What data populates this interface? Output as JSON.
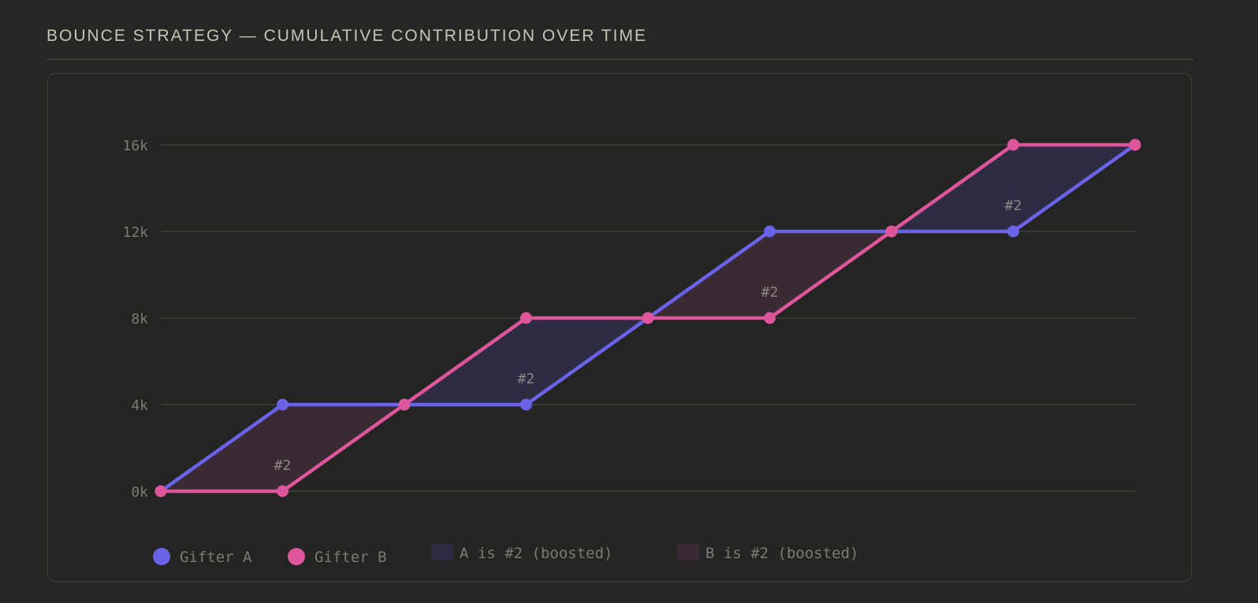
{
  "title": "BOUNCE STRATEGY — CUMULATIVE CONTRIBUTION OVER TIME",
  "colors": {
    "gifter_a": "#6a63e8",
    "gifter_b": "#dd559a",
    "a_boost_fill": "#2e2c44",
    "b_boost_fill": "#3a2a33",
    "grid": "#373734",
    "axis_text": "#7c7a74",
    "band_label": "#8a8882"
  },
  "chart_data": {
    "type": "line",
    "x": [
      0,
      1,
      2,
      3,
      4,
      5,
      6,
      7,
      8
    ],
    "ylim": [
      0,
      16000
    ],
    "yticks": [
      {
        "value": 0,
        "label": "0k"
      },
      {
        "value": 4000,
        "label": "4k"
      },
      {
        "value": 8000,
        "label": "8k"
      },
      {
        "value": 12000,
        "label": "12k"
      },
      {
        "value": 16000,
        "label": "16k"
      }
    ],
    "grid": true,
    "legend_position": "bottom-left",
    "series": [
      {
        "name": "Gifter A",
        "values": [
          0,
          4000,
          4000,
          4000,
          8000,
          12000,
          12000,
          12000,
          16000
        ]
      },
      {
        "name": "Gifter B",
        "values": [
          0,
          0,
          4000,
          8000,
          8000,
          8000,
          12000,
          16000,
          16000
        ]
      }
    ],
    "bands": [
      {
        "kind": "B is #2 (boosted)",
        "from": 0,
        "to": 2,
        "label": "#2",
        "label_x": 1,
        "label_y": 1200
      },
      {
        "kind": "A is #2 (boosted)",
        "from": 2,
        "to": 4,
        "label": "#2",
        "label_x": 3,
        "label_y": 5200
      },
      {
        "kind": "B is #2 (boosted)",
        "from": 4,
        "to": 6,
        "label": "#2",
        "label_x": 5,
        "label_y": 9200
      },
      {
        "kind": "A is #2 (boosted)",
        "from": 6,
        "to": 8,
        "label": "#2",
        "label_x": 7,
        "label_y": 13200
      }
    ],
    "legend": [
      {
        "label": "Gifter A",
        "kind": "dot",
        "color_key": "gifter_a"
      },
      {
        "label": "Gifter B",
        "kind": "dot",
        "color_key": "gifter_b"
      },
      {
        "label": "A is #2 (boosted)",
        "kind": "swatch",
        "color_key": "a_boost_fill"
      },
      {
        "label": "B is #2 (boosted)",
        "kind": "swatch",
        "color_key": "b_boost_fill"
      }
    ]
  }
}
